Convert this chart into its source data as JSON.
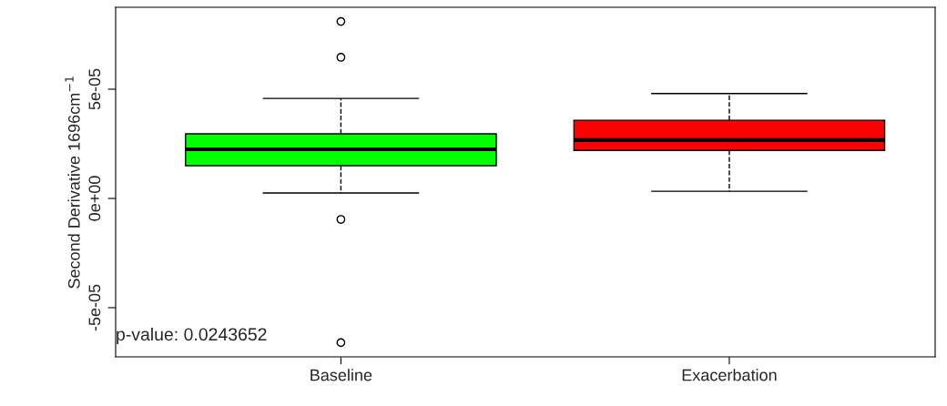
{
  "chart_data": {
    "type": "box",
    "ylabel": "Second Derivative 1696cm$^{−1}$",
    "categories": [
      "Baseline",
      "Exacerbation"
    ],
    "colors": [
      "#00ff00",
      "#ff0000"
    ],
    "boxes": [
      {
        "low": 2.5e-06,
        "q1": 1.5e-05,
        "median": 2.25e-05,
        "q3": 2.96e-05,
        "high": 4.58e-05,
        "outliers": [
          8.1e-05,
          6.46e-05,
          -9.6e-06,
          -6.6e-05
        ]
      },
      {
        "low": 3.3e-06,
        "q1": 2.2e-05,
        "median": 2.67e-05,
        "q3": 3.58e-05,
        "high": 4.8e-05
      }
    ],
    "ylim": [
      -7.25e-05,
      8.75e-05
    ],
    "yticks": [
      {
        "value": -5e-05,
        "label": "-5e-05"
      },
      {
        "value": 0,
        "label": "0e+00"
      },
      {
        "value": 5e-05,
        "label": "5e-05"
      }
    ],
    "annotations": [
      "p-value: 0.0243652"
    ],
    "grid": false
  }
}
